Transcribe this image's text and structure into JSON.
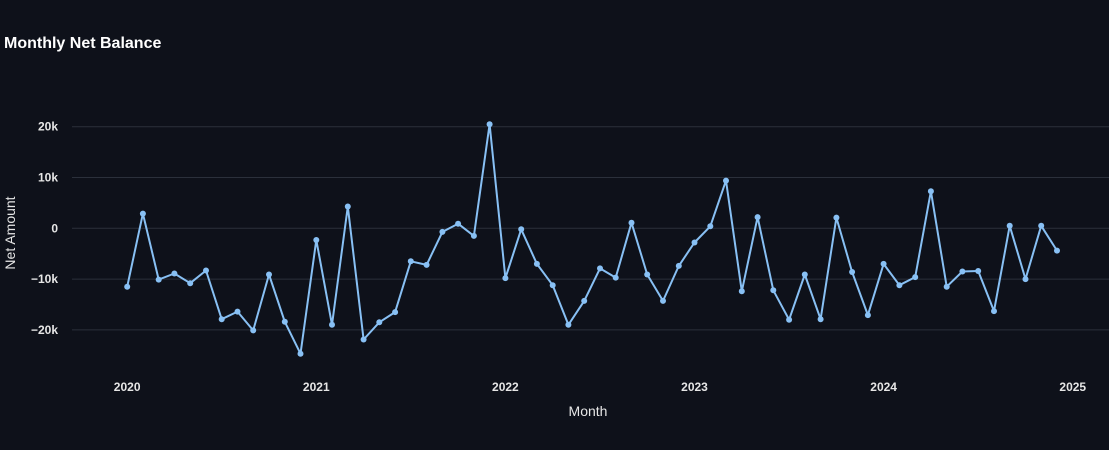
{
  "chart_data": {
    "type": "line",
    "title": "Monthly Net Balance",
    "xlabel": "Month",
    "ylabel": "Net Amount",
    "x_ticks": [
      {
        "value": 0,
        "label": "2020"
      },
      {
        "value": 12,
        "label": "2021"
      },
      {
        "value": 24,
        "label": "2022"
      },
      {
        "value": 36,
        "label": "2023"
      },
      {
        "value": 48,
        "label": "2024"
      },
      {
        "value": 60,
        "label": "2025"
      }
    ],
    "y_ticks": [
      {
        "value": 20000,
        "label": "20k"
      },
      {
        "value": 10000,
        "label": "10k"
      },
      {
        "value": 0,
        "label": "0"
      },
      {
        "value": -10000,
        "label": "−10k"
      },
      {
        "value": -20000,
        "label": "−20k"
      }
    ],
    "xlim": [
      -3.5,
      62.3
    ],
    "ylim": [
      -27900,
      29200
    ],
    "grid": true,
    "color": "#88c0f4",
    "series": [
      {
        "name": "Net Balance",
        "x": [
          0,
          1,
          2,
          3,
          4,
          5,
          6,
          7,
          8,
          9,
          10,
          11,
          12,
          13,
          14,
          15,
          16,
          17,
          18,
          19,
          20,
          21,
          22,
          23,
          24,
          25,
          26,
          27,
          28,
          29,
          30,
          31,
          32,
          33,
          34,
          35,
          36,
          37,
          38,
          39,
          40,
          41,
          42,
          43,
          44,
          45,
          46,
          47,
          48,
          49,
          50,
          51,
          52,
          53,
          54,
          55,
          56,
          57,
          58,
          59
        ],
        "values": [
          -11500,
          2900,
          -10100,
          -8900,
          -10800,
          -8300,
          -17900,
          -16400,
          -20100,
          -9100,
          -18400,
          -24700,
          -2300,
          -19000,
          4300,
          -21900,
          -18500,
          -16500,
          -6500,
          -7200,
          -700,
          900,
          -1500,
          20500,
          -9800,
          -200,
          -7000,
          -11200,
          -19000,
          -14300,
          -7900,
          -9700,
          1100,
          -9100,
          -14300,
          -7400,
          -2800,
          400,
          9400,
          -12400,
          2200,
          -12200,
          -18000,
          -9100,
          -17900,
          2100,
          -8600,
          -17100,
          -7000,
          -11200,
          -9600,
          7300,
          -11500,
          -8500,
          -8400,
          -16300,
          500,
          -10000,
          500,
          -4400
        ]
      }
    ]
  }
}
